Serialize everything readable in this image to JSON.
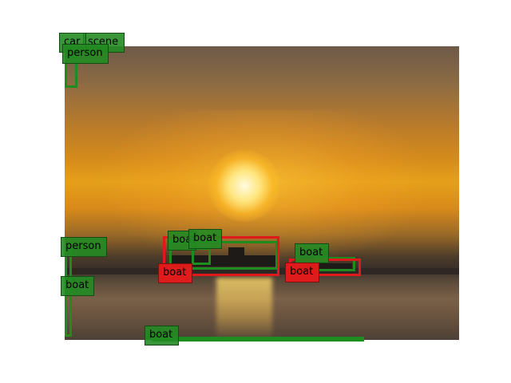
{
  "image": {
    "description_colors": {
      "sky_top": "#6e5a48",
      "sun_core": "#fffbe0",
      "sea": "#5a4a3a"
    }
  },
  "detections": [
    {
      "id": "d1",
      "label": "car"
    },
    {
      "id": "d2",
      "label": "scene"
    },
    {
      "id": "d3",
      "label": "person"
    },
    {
      "id": "d4",
      "label": "person"
    },
    {
      "id": "d5",
      "label": "boat"
    },
    {
      "id": "d6",
      "label": "boat"
    },
    {
      "id": "d7",
      "label": "boat"
    },
    {
      "id": "d8",
      "label": "boat"
    },
    {
      "id": "d9",
      "label": "boat"
    },
    {
      "id": "d10",
      "label": "boat"
    },
    {
      "id": "d11",
      "label": "boat"
    }
  ],
  "colors": {
    "green_box": "#1e8c1e",
    "red_box": "#e01a1a"
  }
}
